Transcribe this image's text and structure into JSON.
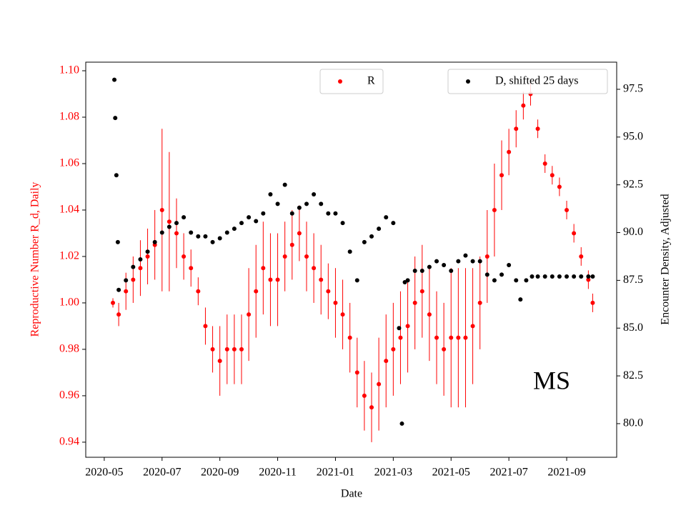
{
  "chart_data": {
    "type": "scatter",
    "x_label": "Date",
    "y_label": "Reproductive Number R_d, Daily",
    "y2_label": "Encounter Density, Adjusted",
    "annotation": "MS",
    "xlim": [
      3.36,
      21.73
    ],
    "xticks": [
      {
        "value": 4,
        "label": "2020-05"
      },
      {
        "value": 6,
        "label": "2020-07"
      },
      {
        "value": 8,
        "label": "2020-09"
      },
      {
        "value": 10,
        "label": "2020-11"
      },
      {
        "value": 12,
        "label": "2021-01"
      },
      {
        "value": 14,
        "label": "2021-03"
      },
      {
        "value": 16,
        "label": "2021-05"
      },
      {
        "value": 18,
        "label": "2021-07"
      },
      {
        "value": 20,
        "label": "2021-09"
      }
    ],
    "ylim": [
      0.9335,
      1.1037
    ],
    "yticks": [
      0.94,
      0.96,
      0.98,
      {
        "value": 1.0,
        "label": "1.00"
      },
      1.02,
      1.04,
      1.06,
      1.08,
      {
        "value": 1.1,
        "label": "1.10"
      }
    ],
    "y2lim": [
      78.24,
      98.92
    ],
    "y2ticks": [
      {
        "value": 80,
        "label": "80.0"
      },
      82.5,
      {
        "value": 85,
        "label": "85.0"
      },
      87.5,
      {
        "value": 90,
        "label": "90.0"
      },
      92.5,
      {
        "value": 95,
        "label": "95.0"
      },
      97.5
    ],
    "series": [
      {
        "name": "R",
        "color": "#ff0000",
        "axis": "y",
        "x": [
          4.3,
          4.5,
          4.75,
          5.0,
          5.25,
          5.5,
          5.75,
          6.0,
          6.25,
          6.5,
          6.75,
          7.0,
          7.25,
          7.5,
          7.75,
          8.0,
          8.25,
          8.5,
          8.75,
          9.0,
          9.25,
          9.5,
          9.75,
          10.0,
          10.25,
          10.5,
          10.75,
          11.0,
          11.25,
          11.5,
          11.75,
          12.0,
          12.25,
          12.5,
          12.75,
          13.0,
          13.25,
          13.5,
          13.75,
          14.0,
          14.25,
          14.5,
          14.75,
          15.0,
          15.25,
          15.5,
          15.75,
          16.0,
          16.25,
          16.5,
          16.75,
          17.0,
          17.25,
          17.5,
          17.75,
          18.0,
          18.25,
          18.5,
          18.75,
          19.0,
          19.25,
          19.5,
          19.75,
          20.0,
          20.25,
          20.5,
          20.75,
          20.9
        ],
        "values": [
          1.0,
          0.995,
          1.005,
          1.01,
          1.015,
          1.02,
          1.025,
          1.04,
          1.035,
          1.03,
          1.02,
          1.015,
          1.005,
          0.99,
          0.98,
          0.975,
          0.98,
          0.98,
          0.98,
          0.995,
          1.005,
          1.015,
          1.01,
          1.01,
          1.02,
          1.025,
          1.03,
          1.02,
          1.015,
          1.01,
          1.005,
          1.0,
          0.995,
          0.985,
          0.97,
          0.96,
          0.955,
          0.965,
          0.975,
          0.98,
          0.985,
          0.99,
          1.0,
          1.005,
          0.995,
          0.985,
          0.98,
          0.985,
          0.985,
          0.985,
          0.99,
          1.0,
          1.02,
          1.04,
          1.055,
          1.065,
          1.075,
          1.085,
          1.09,
          1.075,
          1.06,
          1.055,
          1.05,
          1.04,
          1.03,
          1.02,
          1.01,
          1.0
        ],
        "errors": [
          0.002,
          0.005,
          0.008,
          0.01,
          0.012,
          0.012,
          0.015,
          0.035,
          0.03,
          0.015,
          0.01,
          0.008,
          0.006,
          0.008,
          0.01,
          0.015,
          0.015,
          0.015,
          0.015,
          0.02,
          0.02,
          0.02,
          0.02,
          0.02,
          0.015,
          0.015,
          0.012,
          0.015,
          0.015,
          0.015,
          0.012,
          0.015,
          0.015,
          0.015,
          0.015,
          0.015,
          0.015,
          0.02,
          0.02,
          0.02,
          0.02,
          0.02,
          0.02,
          0.02,
          0.02,
          0.02,
          0.02,
          0.03,
          0.03,
          0.03,
          0.025,
          0.02,
          0.02,
          0.02,
          0.015,
          0.01,
          0.008,
          0.006,
          0.005,
          0.004,
          0.004,
          0.004,
          0.004,
          0.004,
          0.004,
          0.004,
          0.004,
          0.004
        ]
      },
      {
        "name": "D, shifted 25 days",
        "color": "#000000",
        "axis": "y2",
        "x": [
          4.35,
          4.38,
          4.42,
          4.47,
          4.5,
          4.75,
          5.0,
          5.25,
          5.5,
          5.75,
          6.0,
          6.25,
          6.5,
          6.75,
          7.0,
          7.25,
          7.5,
          7.75,
          8.0,
          8.25,
          8.5,
          8.75,
          9.0,
          9.25,
          9.5,
          9.75,
          10.0,
          10.25,
          10.5,
          10.75,
          11.0,
          11.25,
          11.5,
          11.75,
          12.0,
          12.25,
          12.5,
          12.75,
          13.0,
          13.25,
          13.5,
          13.75,
          14.0,
          14.2,
          14.3,
          14.4,
          14.5,
          14.75,
          15.0,
          15.25,
          15.5,
          15.75,
          16.0,
          16.25,
          16.5,
          16.75,
          17.0,
          17.25,
          17.5,
          17.75,
          18.0,
          18.25,
          18.4,
          18.6,
          18.8,
          19.0,
          19.25,
          19.5,
          19.75,
          20.0,
          20.25,
          20.5,
          20.75,
          20.9
        ],
        "values": [
          98.0,
          96.0,
          93.0,
          89.5,
          87.0,
          87.5,
          88.2,
          88.6,
          89.0,
          89.5,
          90.0,
          90.3,
          90.5,
          90.8,
          90.0,
          89.8,
          89.8,
          89.5,
          89.7,
          90.0,
          90.2,
          90.5,
          90.8,
          90.6,
          91.0,
          92.0,
          91.5,
          92.5,
          91.0,
          91.3,
          91.5,
          92.0,
          91.5,
          91.0,
          91.0,
          90.5,
          89.0,
          87.5,
          89.5,
          89.8,
          90.2,
          90.8,
          90.5,
          85.0,
          80.0,
          87.4,
          87.5,
          88.0,
          88.0,
          88.2,
          88.5,
          88.3,
          88.0,
          88.5,
          88.8,
          88.5,
          88.5,
          87.8,
          87.5,
          87.8,
          88.3,
          87.5,
          86.5,
          87.5,
          87.7,
          87.7,
          87.7,
          87.7,
          87.7,
          87.7,
          87.7,
          87.7,
          87.7,
          87.7
        ]
      }
    ]
  }
}
